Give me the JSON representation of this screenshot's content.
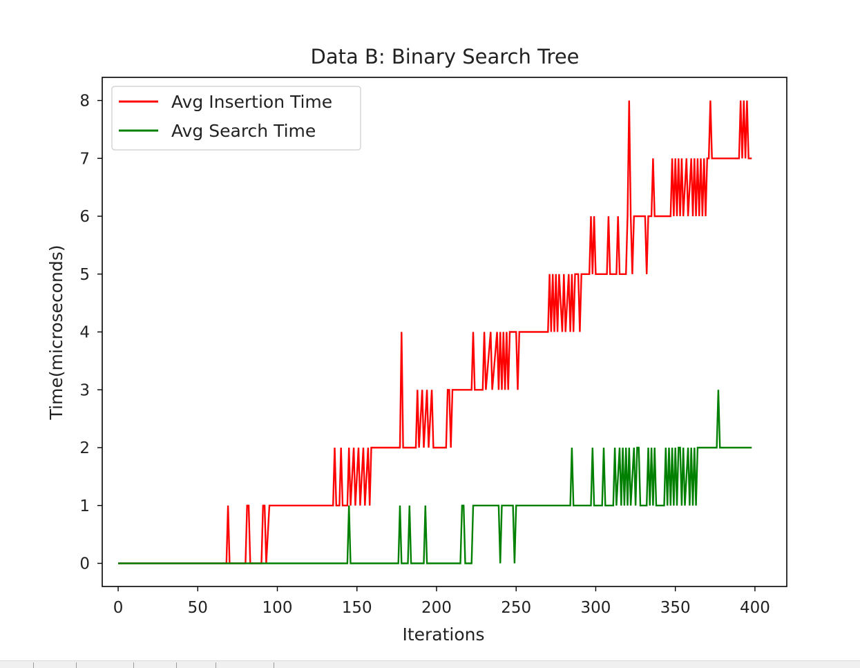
{
  "chart_data": {
    "type": "line",
    "title": "Data B: Binary Search Tree",
    "xlabel": "Iterations",
    "ylabel": "Time(microseconds)",
    "xlim": [
      -10,
      420
    ],
    "ylim": [
      -0.4,
      8.4
    ],
    "xticks": [
      0,
      50,
      100,
      150,
      200,
      250,
      300,
      350,
      400
    ],
    "yticks": [
      0,
      1,
      2,
      3,
      4,
      5,
      6,
      7,
      8
    ],
    "grid": false,
    "legend_position": "top-left",
    "series": [
      {
        "name": "Avg Insertion Time",
        "color": "#ff0000",
        "points": [
          [
            0,
            0
          ],
          [
            68,
            0
          ],
          [
            69,
            1
          ],
          [
            70,
            0
          ],
          [
            80,
            0
          ],
          [
            81,
            1
          ],
          [
            82,
            1
          ],
          [
            83,
            0
          ],
          [
            90,
            0
          ],
          [
            91,
            1
          ],
          [
            92,
            1
          ],
          [
            93,
            0
          ],
          [
            95,
            1
          ],
          [
            135,
            1
          ],
          [
            136,
            2
          ],
          [
            137,
            1
          ],
          [
            139,
            1
          ],
          [
            140,
            2
          ],
          [
            141,
            1
          ],
          [
            144,
            1
          ],
          [
            145,
            2
          ],
          [
            146,
            1
          ],
          [
            148,
            2
          ],
          [
            149,
            1
          ],
          [
            151,
            2
          ],
          [
            152,
            1
          ],
          [
            154,
            2
          ],
          [
            155,
            1
          ],
          [
            157,
            2
          ],
          [
            158,
            1
          ],
          [
            159,
            2
          ],
          [
            177,
            2
          ],
          [
            178,
            4
          ],
          [
            179,
            2
          ],
          [
            187,
            2
          ],
          [
            188,
            3
          ],
          [
            189,
            2
          ],
          [
            191,
            3
          ],
          [
            192,
            2
          ],
          [
            194,
            3
          ],
          [
            195,
            2
          ],
          [
            197,
            3
          ],
          [
            198,
            2
          ],
          [
            206,
            2
          ],
          [
            207,
            3
          ],
          [
            208,
            3
          ],
          [
            209,
            2
          ],
          [
            210,
            3
          ],
          [
            222,
            3
          ],
          [
            223,
            4
          ],
          [
            224,
            3
          ],
          [
            229,
            3
          ],
          [
            230,
            4
          ],
          [
            231,
            3
          ],
          [
            234,
            4
          ],
          [
            235,
            3
          ],
          [
            238,
            4
          ],
          [
            239,
            3
          ],
          [
            240,
            4
          ],
          [
            241,
            3
          ],
          [
            242,
            4
          ],
          [
            243,
            3
          ],
          [
            244,
            4
          ],
          [
            245,
            3
          ],
          [
            246,
            4
          ],
          [
            250,
            4
          ],
          [
            251,
            3
          ],
          [
            252,
            4
          ],
          [
            270,
            4
          ],
          [
            271,
            5
          ],
          [
            272,
            4
          ],
          [
            273,
            5
          ],
          [
            274,
            4
          ],
          [
            275,
            5
          ],
          [
            276,
            4
          ],
          [
            277,
            5
          ],
          [
            279,
            4
          ],
          [
            280,
            5
          ],
          [
            281,
            4
          ],
          [
            283,
            5
          ],
          [
            284,
            4
          ],
          [
            285,
            5
          ],
          [
            286,
            4
          ],
          [
            287,
            5
          ],
          [
            289,
            5
          ],
          [
            290,
            4
          ],
          [
            291,
            5
          ],
          [
            296,
            5
          ],
          [
            297,
            6
          ],
          [
            298,
            5
          ],
          [
            299,
            6
          ],
          [
            300,
            5
          ],
          [
            307,
            5
          ],
          [
            308,
            6
          ],
          [
            309,
            5
          ],
          [
            313,
            5
          ],
          [
            314,
            6
          ],
          [
            315,
            5
          ],
          [
            319,
            5
          ],
          [
            320,
            6
          ],
          [
            321,
            8
          ],
          [
            322,
            6
          ],
          [
            323,
            5
          ],
          [
            324,
            6
          ],
          [
            331,
            6
          ],
          [
            332,
            5
          ],
          [
            333,
            6
          ],
          [
            335,
            6
          ],
          [
            336,
            7
          ],
          [
            337,
            6
          ],
          [
            347,
            6
          ],
          [
            348,
            7
          ],
          [
            349,
            6
          ],
          [
            350,
            7
          ],
          [
            351,
            6
          ],
          [
            352,
            7
          ],
          [
            353,
            6
          ],
          [
            354,
            7
          ],
          [
            355,
            6
          ],
          [
            357,
            7
          ],
          [
            358,
            6
          ],
          [
            360,
            7
          ],
          [
            361,
            6
          ],
          [
            362,
            7
          ],
          [
            363,
            6
          ],
          [
            364,
            7
          ],
          [
            365,
            6
          ],
          [
            366,
            7
          ],
          [
            367,
            6
          ],
          [
            368,
            7
          ],
          [
            369,
            6
          ],
          [
            370,
            7
          ],
          [
            371,
            7
          ],
          [
            372,
            8
          ],
          [
            373,
            7
          ],
          [
            390,
            7
          ],
          [
            391,
            8
          ],
          [
            392,
            7
          ],
          [
            393,
            8
          ],
          [
            394,
            7
          ],
          [
            395,
            8
          ],
          [
            396,
            7
          ],
          [
            398,
            7
          ]
        ]
      },
      {
        "name": "Avg Search Time",
        "color": "#008000",
        "points": [
          [
            0,
            0
          ],
          [
            144,
            0
          ],
          [
            145,
            1
          ],
          [
            146,
            0
          ],
          [
            176,
            0
          ],
          [
            177,
            1
          ],
          [
            178,
            0
          ],
          [
            182,
            0
          ],
          [
            183,
            1
          ],
          [
            184,
            0
          ],
          [
            192,
            0
          ],
          [
            193,
            1
          ],
          [
            194,
            0
          ],
          [
            215,
            0
          ],
          [
            216,
            1
          ],
          [
            217,
            1
          ],
          [
            218,
            0
          ],
          [
            222,
            0
          ],
          [
            223,
            1
          ],
          [
            239,
            1
          ],
          [
            240,
            0
          ],
          [
            241,
            1
          ],
          [
            248,
            1
          ],
          [
            249,
            0
          ],
          [
            250,
            1
          ],
          [
            284,
            1
          ],
          [
            285,
            2
          ],
          [
            286,
            1
          ],
          [
            297,
            1
          ],
          [
            298,
            2
          ],
          [
            299,
            1
          ],
          [
            304,
            1
          ],
          [
            305,
            2
          ],
          [
            306,
            1
          ],
          [
            311,
            1
          ],
          [
            312,
            2
          ],
          [
            313,
            1
          ],
          [
            315,
            2
          ],
          [
            316,
            1
          ],
          [
            317,
            2
          ],
          [
            318,
            1
          ],
          [
            319,
            2
          ],
          [
            320,
            1
          ],
          [
            321,
            2
          ],
          [
            322,
            1
          ],
          [
            324,
            2
          ],
          [
            325,
            1
          ],
          [
            326,
            2
          ],
          [
            327,
            2
          ],
          [
            328,
            1
          ],
          [
            332,
            1
          ],
          [
            333,
            2
          ],
          [
            334,
            1
          ],
          [
            335,
            2
          ],
          [
            336,
            1
          ],
          [
            337,
            2
          ],
          [
            338,
            1
          ],
          [
            343,
            1
          ],
          [
            344,
            2
          ],
          [
            345,
            1
          ],
          [
            346,
            2
          ],
          [
            347,
            1
          ],
          [
            348,
            2
          ],
          [
            349,
            1
          ],
          [
            350,
            2
          ],
          [
            351,
            1
          ],
          [
            352,
            2
          ],
          [
            353,
            2
          ],
          [
            354,
            1
          ],
          [
            355,
            2
          ],
          [
            356,
            1
          ],
          [
            358,
            2
          ],
          [
            359,
            1
          ],
          [
            360,
            2
          ],
          [
            361,
            1
          ],
          [
            362,
            2
          ],
          [
            363,
            1
          ],
          [
            364,
            2
          ],
          [
            365,
            2
          ],
          [
            376,
            2
          ],
          [
            377,
            3
          ],
          [
            378,
            2
          ],
          [
            398,
            2
          ]
        ]
      }
    ]
  }
}
